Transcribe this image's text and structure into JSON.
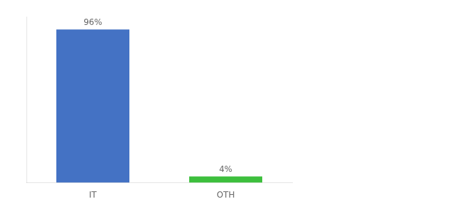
{
  "chart_data": {
    "type": "bar",
    "categories": [
      "IT",
      "OTH"
    ],
    "values": [
      96,
      4
    ],
    "value_labels": [
      "96%",
      "4%"
    ],
    "data_labels": true,
    "colors": [
      "#4472c4",
      "#3dbf3d"
    ],
    "ylim": [
      0,
      104
    ],
    "tick_labels": "x",
    "grid": false
  }
}
